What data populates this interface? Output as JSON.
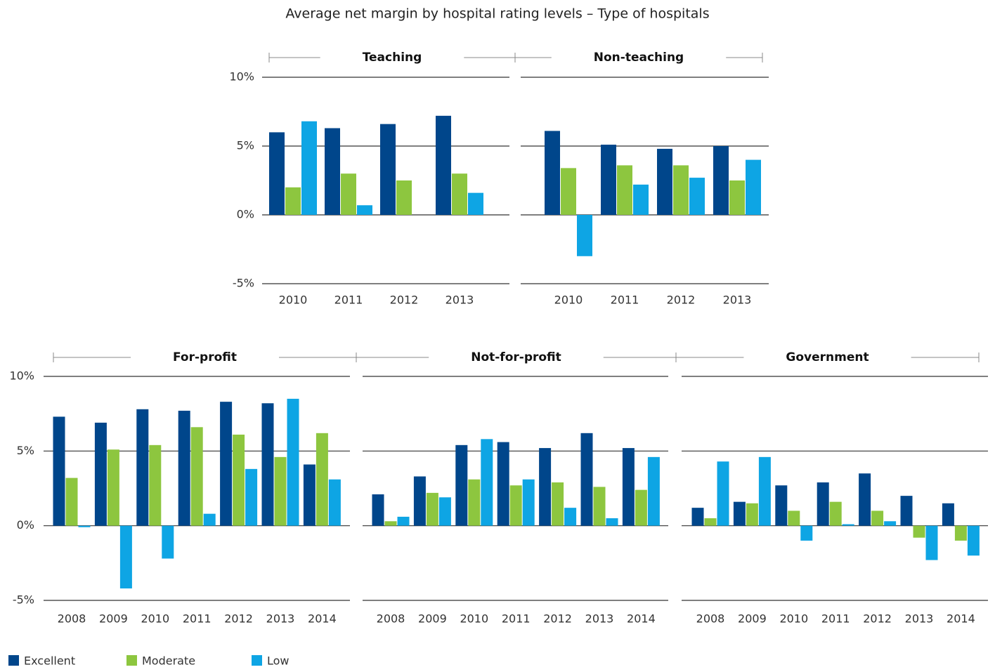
{
  "title": "Average net margin by hospital rating levels – Type of hospitals",
  "ylim": [
    -5,
    10
  ],
  "yticks": [
    {
      "value": -5,
      "label": "-5%"
    },
    {
      "value": 0,
      "label": "0%"
    },
    {
      "value": 5,
      "label": "5%"
    },
    {
      "value": 10,
      "label": "10%"
    }
  ],
  "series": [
    {
      "name": "Excellent",
      "color": "#00468b"
    },
    {
      "name": "Moderate",
      "color": "#8dc63f"
    },
    {
      "name": "Low",
      "color": "#0ea5e4"
    }
  ],
  "chart_data": [
    {
      "type": "bar",
      "title": "Teaching",
      "categories": [
        "2010",
        "2011",
        "2012",
        "2013"
      ],
      "series": [
        {
          "values": [
            6.0,
            6.3,
            6.6,
            7.2
          ]
        },
        {
          "values": [
            2.0,
            3.0,
            2.5,
            3.0
          ]
        },
        {
          "values": [
            6.8,
            0.7,
            null,
            1.6
          ]
        }
      ]
    },
    {
      "type": "bar",
      "title": "Non-teaching",
      "categories": [
        "2010",
        "2011",
        "2012",
        "2013"
      ],
      "series": [
        {
          "values": [
            6.1,
            5.1,
            4.8,
            5.0
          ]
        },
        {
          "values": [
            3.4,
            3.6,
            3.6,
            2.5
          ]
        },
        {
          "values": [
            -3.0,
            2.2,
            2.7,
            4.0
          ]
        }
      ]
    },
    {
      "type": "bar",
      "title": "For-profit",
      "categories": [
        "2008",
        "2009",
        "2010",
        "2011",
        "2012",
        "2013",
        "2014"
      ],
      "series": [
        {
          "values": [
            7.3,
            6.9,
            7.8,
            7.7,
            8.3,
            8.2,
            4.1
          ]
        },
        {
          "values": [
            3.2,
            5.1,
            5.4,
            6.6,
            6.1,
            4.6,
            6.2
          ]
        },
        {
          "values": [
            -0.1,
            -4.2,
            -2.2,
            0.8,
            3.8,
            8.5,
            3.1
          ]
        }
      ]
    },
    {
      "type": "bar",
      "title": "Not-for-profit",
      "categories": [
        "2008",
        "2009",
        "2010",
        "2011",
        "2012",
        "2013",
        "2014"
      ],
      "series": [
        {
          "values": [
            2.1,
            3.3,
            5.4,
            5.6,
            5.2,
            6.2,
            5.2
          ]
        },
        {
          "values": [
            0.3,
            2.2,
            3.1,
            2.7,
            2.9,
            2.6,
            2.4
          ]
        },
        {
          "values": [
            0.6,
            1.9,
            5.8,
            3.1,
            1.2,
            0.5,
            4.6
          ]
        }
      ]
    },
    {
      "type": "bar",
      "title": "Government",
      "categories": [
        "2008",
        "2009",
        "2010",
        "2011",
        "2012",
        "2013",
        "2014"
      ],
      "series": [
        {
          "values": [
            1.2,
            1.6,
            2.7,
            2.9,
            3.5,
            2.0,
            1.5
          ]
        },
        {
          "values": [
            0.5,
            1.5,
            1.0,
            1.6,
            1.0,
            -0.8,
            -1.0
          ]
        },
        {
          "values": [
            4.3,
            4.6,
            -1.0,
            0.1,
            0.3,
            -2.3,
            -2.0
          ]
        }
      ]
    }
  ]
}
